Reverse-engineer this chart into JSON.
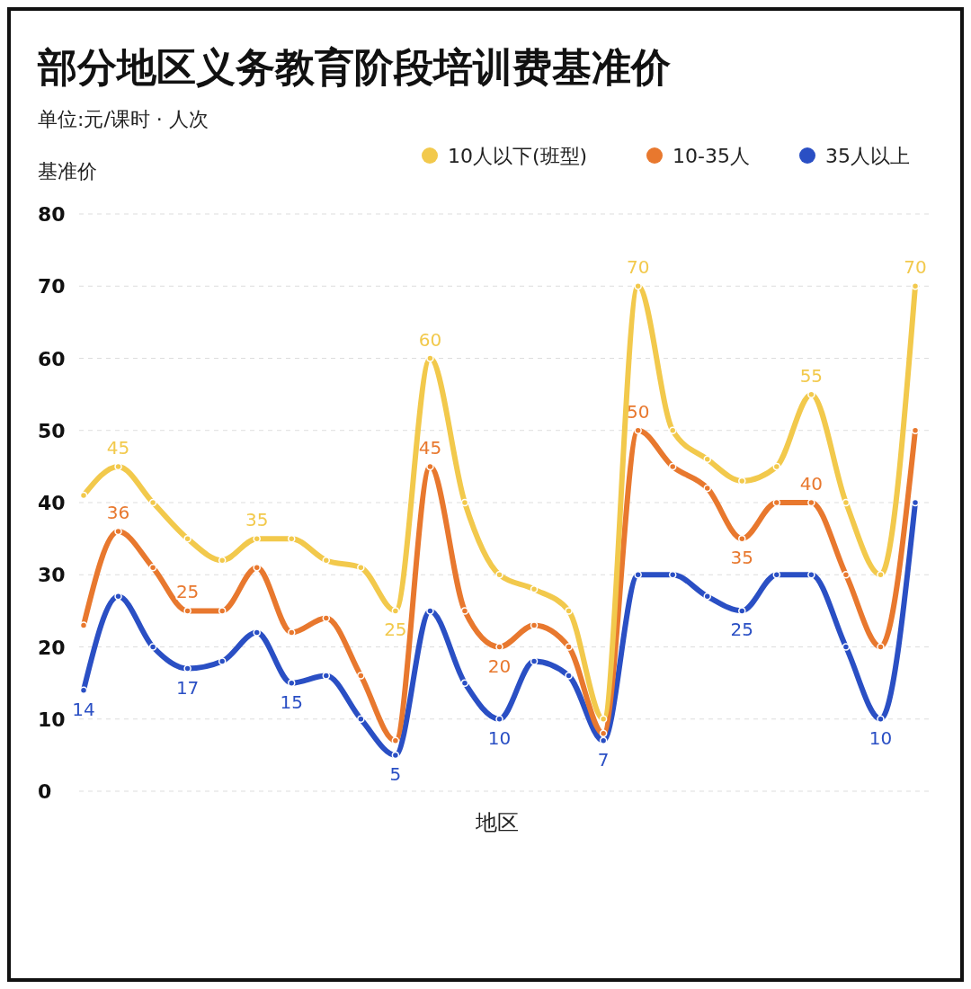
{
  "chart_data": {
    "type": "line",
    "title": "部分地区义务教育阶段培训费基准价",
    "subtitle": "单位:元/课时 · 人次",
    "ylabel": "基准价",
    "xlabel": "地区",
    "categories": [
      null,
      null,
      null,
      null,
      null,
      null,
      null,
      null,
      null,
      null,
      null,
      null,
      null,
      null,
      null,
      null,
      null,
      null,
      null,
      null,
      null,
      null,
      null,
      null,
      null
    ],
    "series": [
      {
        "name": "10人以下(班型)",
        "color": "#f2c94c",
        "values": [
          41,
          45,
          40,
          35,
          32,
          35,
          35,
          32,
          31,
          25,
          60,
          40,
          30,
          28,
          25,
          10,
          70,
          50,
          46,
          43,
          45,
          55,
          40,
          30,
          70
        ],
        "value_labels": [
          null,
          "45",
          null,
          null,
          null,
          "35",
          null,
          null,
          null,
          "25",
          "60",
          null,
          null,
          null,
          null,
          null,
          "70",
          null,
          null,
          null,
          null,
          "55",
          null,
          null,
          "70"
        ]
      },
      {
        "name": "10-35人",
        "color": "#e8782e",
        "values": [
          23,
          36,
          31,
          25,
          25,
          31,
          22,
          24,
          16,
          7,
          45,
          25,
          20,
          23,
          20,
          8,
          50,
          45,
          42,
          35,
          40,
          40,
          30,
          20,
          50
        ],
        "value_labels": [
          null,
          "36",
          null,
          "25",
          null,
          null,
          null,
          null,
          null,
          null,
          "45",
          null,
          "20",
          null,
          null,
          null,
          "50",
          null,
          null,
          "35",
          null,
          "40",
          null,
          null,
          null
        ]
      },
      {
        "name": "35人以上",
        "color": "#2a4fc4",
        "values": [
          14,
          27,
          20,
          17,
          18,
          22,
          15,
          16,
          10,
          5,
          25,
          15,
          10,
          18,
          16,
          7,
          30,
          30,
          27,
          25,
          30,
          30,
          20,
          10,
          40
        ],
        "value_labels": [
          "14",
          null,
          null,
          "17",
          null,
          null,
          "15",
          null,
          null,
          "5",
          null,
          null,
          "10",
          null,
          null,
          "7",
          null,
          null,
          null,
          "25",
          null,
          null,
          null,
          "10",
          null
        ]
      }
    ],
    "ylim": [
      0,
      80
    ],
    "yticks": [
      0,
      10,
      20,
      30,
      40,
      50,
      60,
      70,
      80
    ],
    "grid": "y",
    "legend": "top right",
    "marker": "circle",
    "line_style": "solid"
  }
}
